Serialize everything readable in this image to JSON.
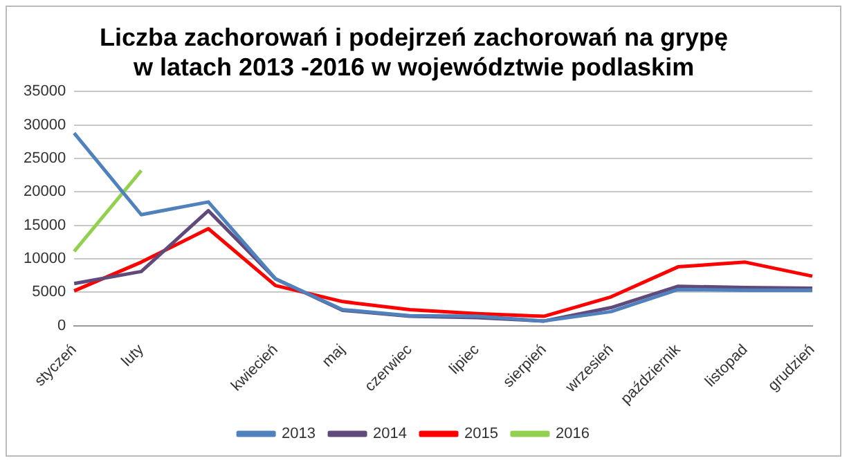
{
  "chart_data": {
    "type": "line",
    "title": [
      "Liczba zachorowań i podejrzeń zachorowań na grypę",
      "w latach 2013 -2016 w województwie podlaskim"
    ],
    "categories": [
      "styczeń",
      "luty",
      null,
      "kwiecień",
      "maj",
      "czerwiec",
      "lipiec",
      "sierpień",
      "wrzesień",
      "październik",
      "listopad",
      "grudzień"
    ],
    "series": [
      {
        "name": "2013",
        "color": "#4f81bd",
        "values": [
          28800,
          16600,
          18500,
          7000,
          2400,
          1500,
          1400,
          700,
          2100,
          5400,
          5300,
          5300
        ]
      },
      {
        "name": "2014",
        "color": "#604a7b",
        "values": [
          6300,
          8100,
          17200,
          7000,
          2300,
          1400,
          1200,
          700,
          2700,
          5900,
          5700,
          5600
        ]
      },
      {
        "name": "2015",
        "color": "#ff0000",
        "values": [
          5200,
          9500,
          14500,
          6000,
          3600,
          2400,
          1800,
          1400,
          4300,
          8800,
          9500,
          7400
        ]
      },
      {
        "name": "2016",
        "color": "#92d050",
        "values": [
          11100,
          23200,
          null,
          null,
          null,
          null,
          null,
          null,
          null,
          null,
          null,
          null
        ]
      }
    ],
    "ylim": [
      0,
      35000
    ],
    "yticks": [
      0,
      5000,
      10000,
      15000,
      20000,
      25000,
      30000,
      35000
    ],
    "grid": "y",
    "legend": "bottom"
  }
}
